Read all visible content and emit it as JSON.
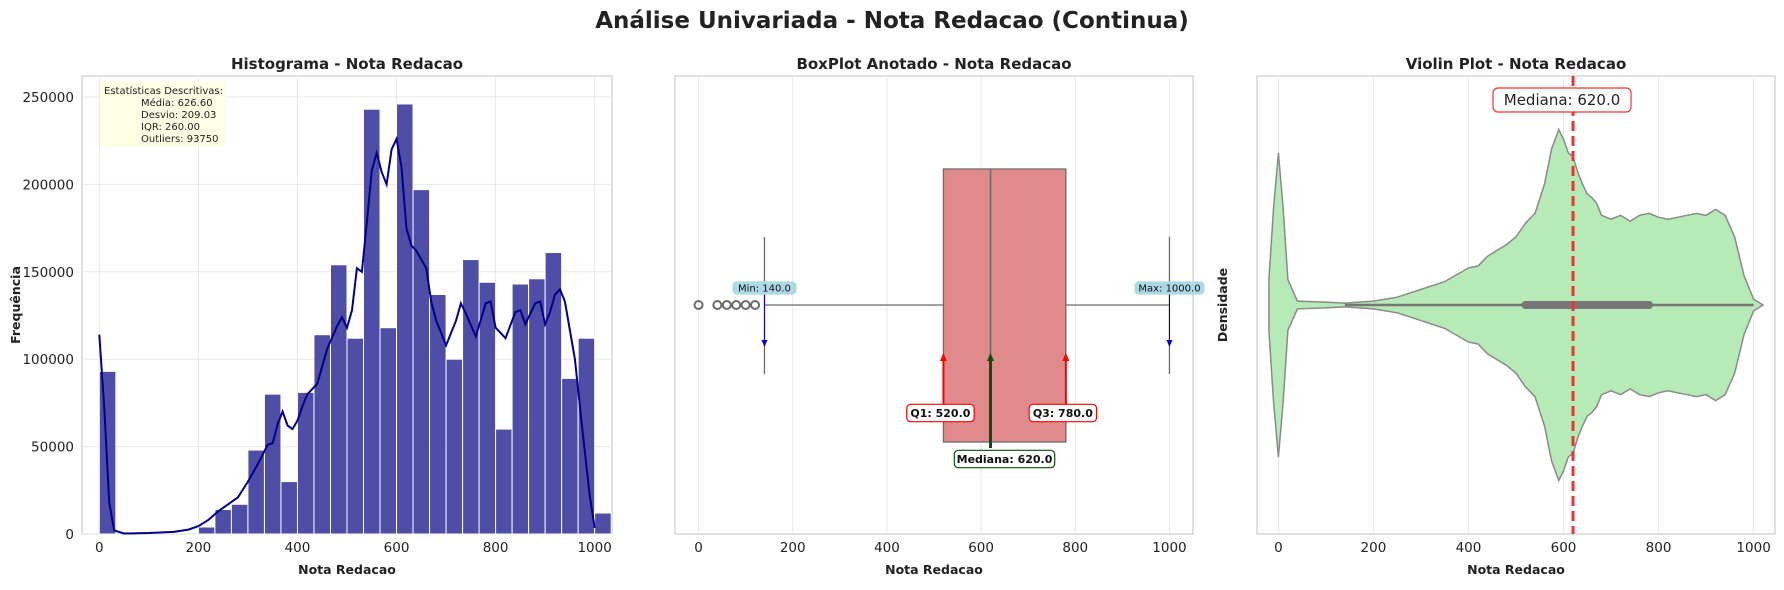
{
  "suptitle": "Análise Univariada - Nota Redacao (Continua)",
  "colors": {
    "hist_bar": "#3f3f9f",
    "kde": "#00008b",
    "box_fill": "#e08a8b",
    "box_line": "#6b6b6b",
    "violin_fill": "#b6eab6",
    "violin_line": "#8a8a8a",
    "median_line": "#ee3333",
    "arrow_red": "#ff0000",
    "arrow_green": "#0b4f0b",
    "arrow_blue": "#0000cc",
    "label_blue_bg": "#add8e6"
  },
  "chart_data": [
    {
      "type": "bar",
      "title": "Histograma - Nota Redacao",
      "xlabel": "Nota Redacao",
      "ylabel": "Frequência",
      "xlim": [
        -35,
        1035
      ],
      "ylim": [
        0,
        262000
      ],
      "xticks": [
        0,
        200,
        400,
        600,
        800,
        1000
      ],
      "yticks": [
        0,
        50000,
        100000,
        150000,
        200000,
        250000
      ],
      "grid": true,
      "bin_width": 33.33,
      "bins": [
        {
          "x0": 0,
          "x1": 33.33,
          "value": 93000
        },
        {
          "x0": 33.33,
          "x1": 66.67,
          "value": 0
        },
        {
          "x0": 66.67,
          "x1": 100,
          "value": 0
        },
        {
          "x0": 100,
          "x1": 133.33,
          "value": 0
        },
        {
          "x0": 133.33,
          "x1": 166.67,
          "value": 0
        },
        {
          "x0": 166.67,
          "x1": 200,
          "value": 0
        },
        {
          "x0": 200,
          "x1": 233.33,
          "value": 4000
        },
        {
          "x0": 233.33,
          "x1": 266.67,
          "value": 14000
        },
        {
          "x0": 266.67,
          "x1": 300,
          "value": 17000
        },
        {
          "x0": 300,
          "x1": 333.33,
          "value": 48000
        },
        {
          "x0": 333.33,
          "x1": 366.67,
          "value": 80000
        },
        {
          "x0": 366.67,
          "x1": 400,
          "value": 30000
        },
        {
          "x0": 400,
          "x1": 433.33,
          "value": 81000
        },
        {
          "x0": 433.33,
          "x1": 466.67,
          "value": 114000
        },
        {
          "x0": 466.67,
          "x1": 500,
          "value": 154000
        },
        {
          "x0": 500,
          "x1": 533.33,
          "value": 112000
        },
        {
          "x0": 533.33,
          "x1": 566.67,
          "value": 243000
        },
        {
          "x0": 566.67,
          "x1": 600,
          "value": 118000
        },
        {
          "x0": 600,
          "x1": 633.33,
          "value": 246000
        },
        {
          "x0": 633.33,
          "x1": 666.67,
          "value": 197000
        },
        {
          "x0": 666.67,
          "x1": 700,
          "value": 137000
        },
        {
          "x0": 700,
          "x1": 733.33,
          "value": 100000
        },
        {
          "x0": 733.33,
          "x1": 766.67,
          "value": 157000
        },
        {
          "x0": 766.67,
          "x1": 800,
          "value": 144000
        },
        {
          "x0": 800,
          "x1": 833.33,
          "value": 60000
        },
        {
          "x0": 833.33,
          "x1": 866.67,
          "value": 143000
        },
        {
          "x0": 866.67,
          "x1": 900,
          "value": 146000
        },
        {
          "x0": 900,
          "x1": 933.33,
          "value": 161000
        },
        {
          "x0": 933.33,
          "x1": 966.67,
          "value": 89000
        },
        {
          "x0": 966.67,
          "x1": 1000,
          "value": 112000
        },
        {
          "x0": 1000,
          "x1": 1033.33,
          "value": 12000
        }
      ],
      "kde": [
        [
          0,
          114000
        ],
        [
          10,
          72000
        ],
        [
          20,
          18000
        ],
        [
          30,
          2000
        ],
        [
          50,
          300
        ],
        [
          100,
          600
        ],
        [
          150,
          1200
        ],
        [
          180,
          2500
        ],
        [
          200,
          4500
        ],
        [
          220,
          8000
        ],
        [
          240,
          13000
        ],
        [
          260,
          17000
        ],
        [
          280,
          21000
        ],
        [
          300,
          30000
        ],
        [
          320,
          40000
        ],
        [
          340,
          51000
        ],
        [
          350,
          52000
        ],
        [
          360,
          63000
        ],
        [
          370,
          70000
        ],
        [
          380,
          62000
        ],
        [
          390,
          60000
        ],
        [
          400,
          65000
        ],
        [
          410,
          73000
        ],
        [
          420,
          80000
        ],
        [
          440,
          86000
        ],
        [
          460,
          106000
        ],
        [
          480,
          119000
        ],
        [
          490,
          124000
        ],
        [
          500,
          118000
        ],
        [
          510,
          128000
        ],
        [
          520,
          152000
        ],
        [
          530,
          150000
        ],
        [
          540,
          178000
        ],
        [
          550,
          208000
        ],
        [
          560,
          218000
        ],
        [
          570,
          207000
        ],
        [
          580,
          200000
        ],
        [
          590,
          220000
        ],
        [
          600,
          226000
        ],
        [
          610,
          210000
        ],
        [
          620,
          175000
        ],
        [
          630,
          165000
        ],
        [
          640,
          162000
        ],
        [
          660,
          152000
        ],
        [
          670,
          133000
        ],
        [
          680,
          122000
        ],
        [
          700,
          108000
        ],
        [
          720,
          122000
        ],
        [
          730,
          132000
        ],
        [
          740,
          126000
        ],
        [
          760,
          113000
        ],
        [
          780,
          132000
        ],
        [
          790,
          133000
        ],
        [
          800,
          118000
        ],
        [
          820,
          112000
        ],
        [
          840,
          127000
        ],
        [
          850,
          128000
        ],
        [
          860,
          120000
        ],
        [
          880,
          132000
        ],
        [
          890,
          133000
        ],
        [
          900,
          120000
        ],
        [
          910,
          127000
        ],
        [
          920,
          137000
        ],
        [
          930,
          140000
        ],
        [
          940,
          133000
        ],
        [
          960,
          100000
        ],
        [
          975,
          60000
        ],
        [
          990,
          22000
        ],
        [
          1000,
          3500
        ]
      ],
      "stats_box": {
        "heading": "Estatísticas Descritivas:",
        "lines": [
          "Média: 626.60",
          "Desvio: 209.03",
          "IQR: 260.00",
          "Outliers: 93750"
        ]
      }
    },
    {
      "type": "box",
      "title": "BoxPlot Anotado - Nota Redacao",
      "xlabel": "Nota Redacao",
      "xlim": [
        -50,
        1050
      ],
      "xticks": [
        0,
        200,
        400,
        600,
        800,
        1000
      ],
      "grid": true,
      "min": 140,
      "q1": 520,
      "median": 620,
      "q3": 780,
      "max": 1000,
      "whisker_low": 140,
      "whisker_high": 1000,
      "outliers": [
        0,
        40,
        60,
        80,
        100,
        120
      ],
      "labels": {
        "min": "Min: 140.0",
        "max": "Max: 1000.0",
        "q1": "Q1: 520.0",
        "q3": "Q3: 780.0",
        "median": "Mediana: 620.0"
      }
    },
    {
      "type": "violin",
      "title": "Violin Plot - Nota Redacao",
      "xlabel": "Nota Redacao",
      "ylabel": "Densidade",
      "xlim": [
        -45,
        1045
      ],
      "xticks": [
        0,
        200,
        400,
        600,
        800,
        1000
      ],
      "grid": true,
      "median": 620,
      "median_label": "Mediana: 620.0",
      "iqr": [
        520,
        780
      ],
      "whiskers": [
        140,
        1000
      ],
      "profile": [
        [
          -20,
          0.13
        ],
        [
          -10,
          0.5
        ],
        [
          0,
          0.78
        ],
        [
          10,
          0.5
        ],
        [
          20,
          0.13
        ],
        [
          40,
          0.02
        ],
        [
          100,
          0.015
        ],
        [
          140,
          0.01
        ],
        [
          200,
          0.02
        ],
        [
          250,
          0.04
        ],
        [
          300,
          0.08
        ],
        [
          350,
          0.12
        ],
        [
          400,
          0.19
        ],
        [
          420,
          0.2
        ],
        [
          440,
          0.25
        ],
        [
          460,
          0.28
        ],
        [
          480,
          0.31
        ],
        [
          500,
          0.35
        ],
        [
          520,
          0.42
        ],
        [
          540,
          0.47
        ],
        [
          560,
          0.62
        ],
        [
          575,
          0.8
        ],
        [
          590,
          0.9
        ],
        [
          600,
          0.85
        ],
        [
          610,
          0.78
        ],
        [
          620,
          0.76
        ],
        [
          630,
          0.68
        ],
        [
          640,
          0.62
        ],
        [
          650,
          0.57
        ],
        [
          660,
          0.55
        ],
        [
          670,
          0.52
        ],
        [
          680,
          0.46
        ],
        [
          690,
          0.45
        ],
        [
          700,
          0.44
        ],
        [
          720,
          0.46
        ],
        [
          740,
          0.43
        ],
        [
          760,
          0.46
        ],
        [
          780,
          0.47
        ],
        [
          800,
          0.45
        ],
        [
          820,
          0.44
        ],
        [
          840,
          0.45
        ],
        [
          860,
          0.46
        ],
        [
          880,
          0.47
        ],
        [
          900,
          0.46
        ],
        [
          920,
          0.49
        ],
        [
          940,
          0.46
        ],
        [
          960,
          0.35
        ],
        [
          980,
          0.15
        ],
        [
          1000,
          0.03
        ],
        [
          1020,
          0.0
        ]
      ]
    }
  ]
}
